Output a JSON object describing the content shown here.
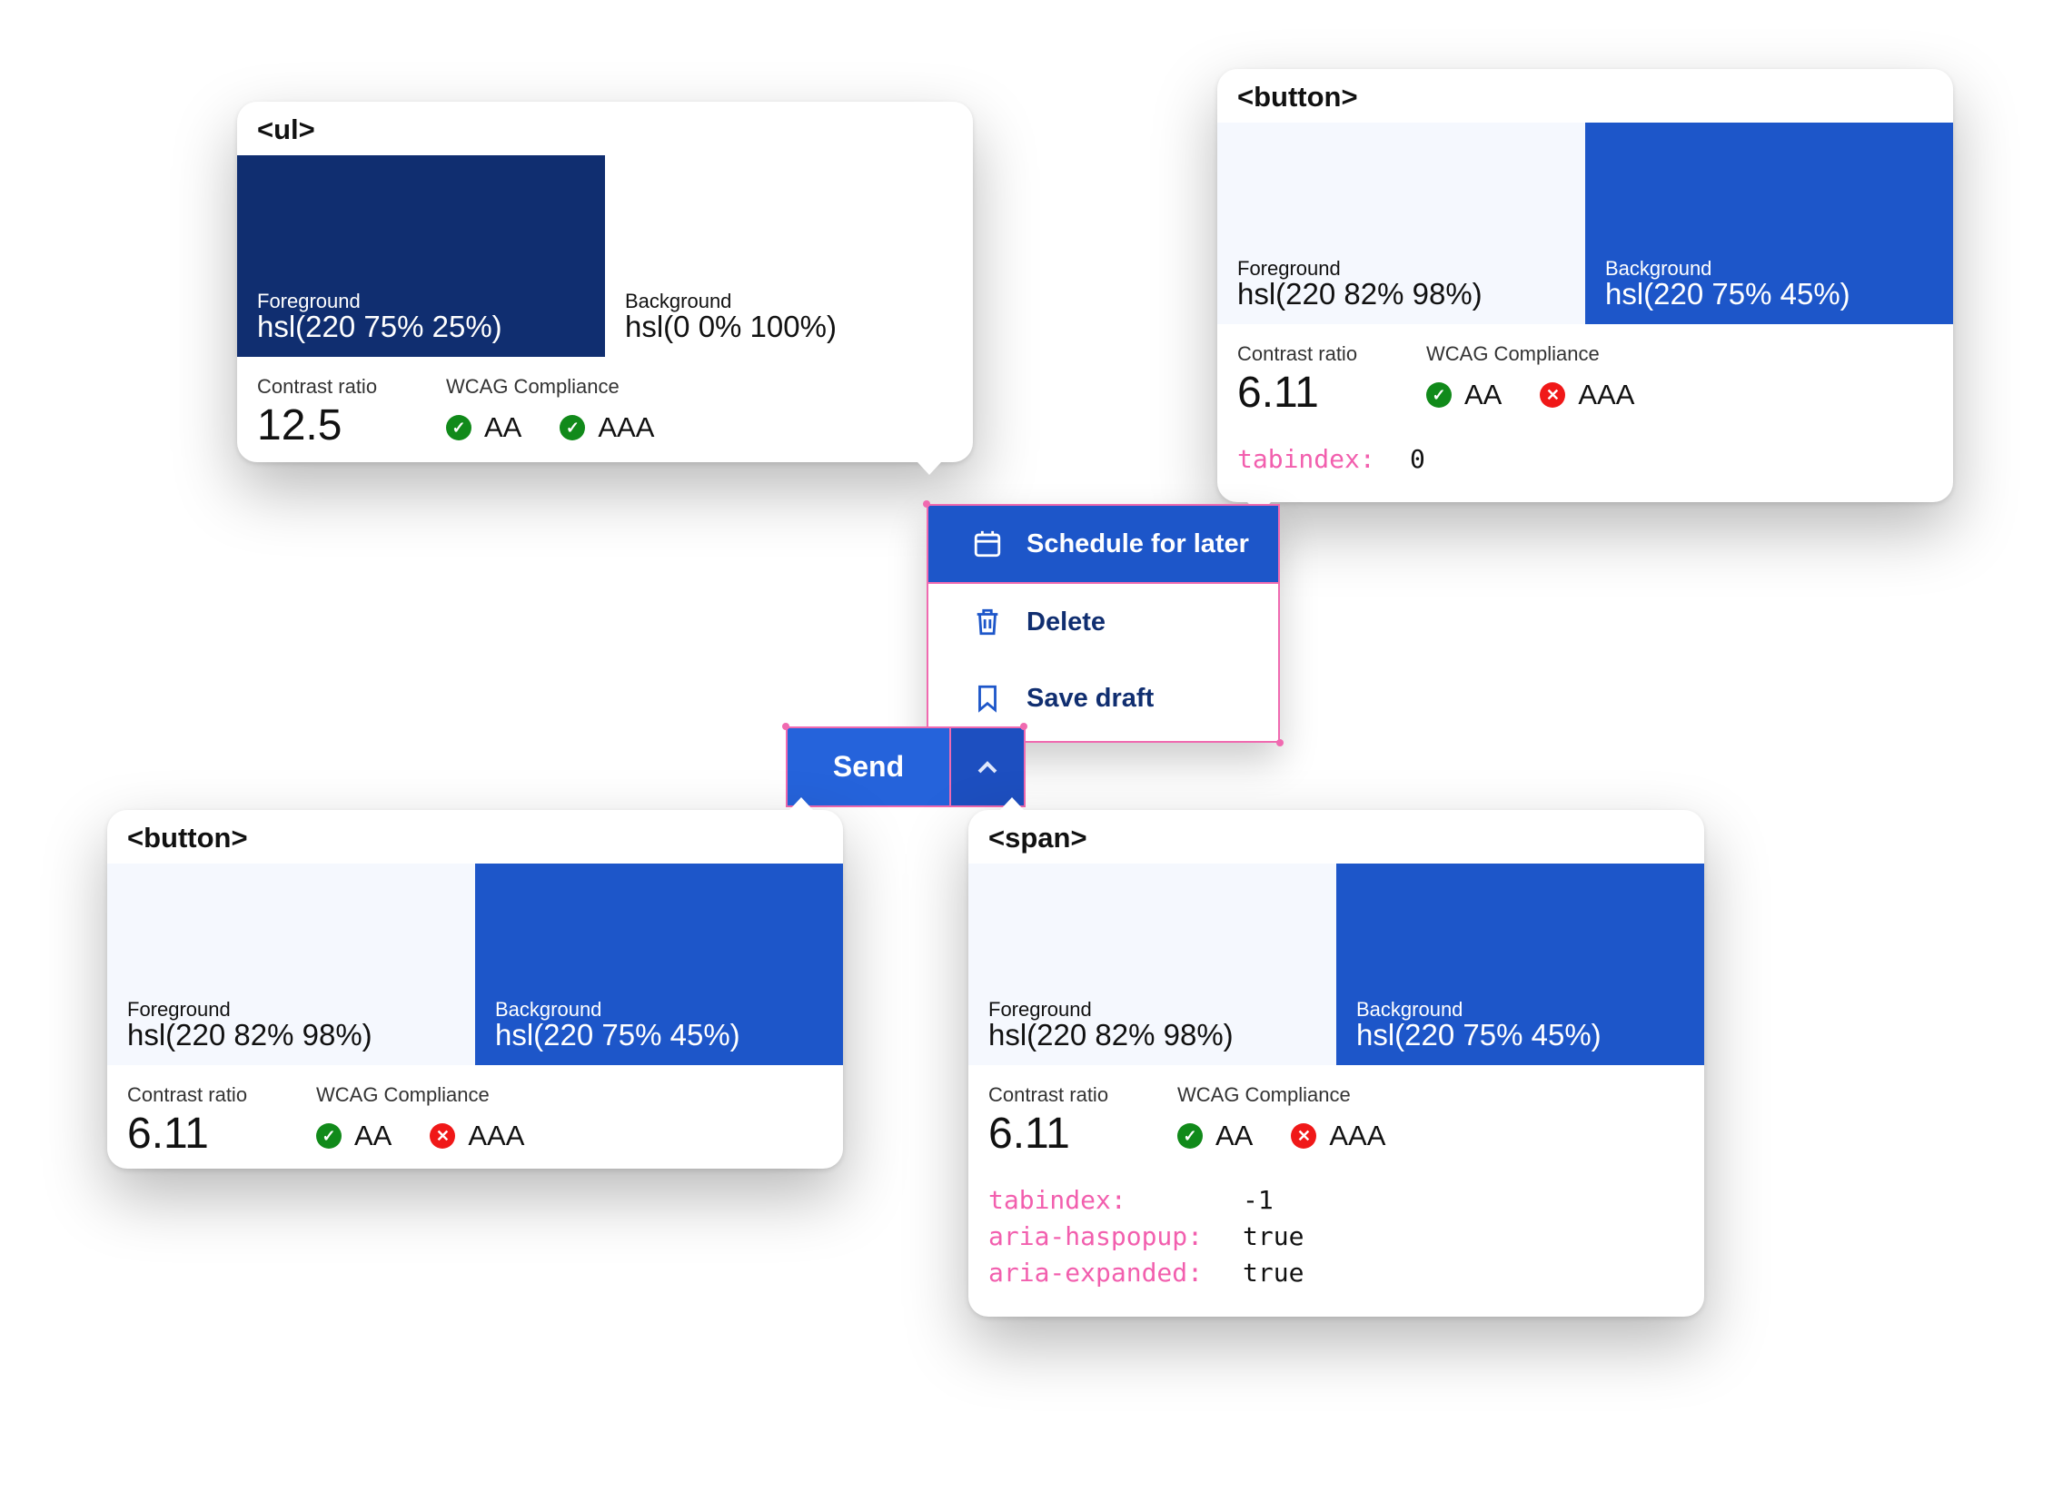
{
  "colors": {
    "accent": "#1d56c9",
    "dark": "#102e70",
    "pink": "#f06ab0",
    "pass": "#118a1a",
    "fail": "#f01818"
  },
  "cards": [
    {
      "tag": "<ul>",
      "fg_label": "Foreground",
      "fg_value": "hsl(220 75% 25%)",
      "bg_label": "Background",
      "bg_value": "hsl(0 0% 100%)",
      "ratio_label": "Contrast ratio",
      "ratio": "12.5",
      "wcag_label": "WCAG Compliance",
      "aa": "AA",
      "aa_pass": true,
      "aaa": "AAA",
      "aaa_pass": true
    },
    {
      "tag": "<button>",
      "fg_label": "Foreground",
      "fg_value": "hsl(220 82% 98%)",
      "bg_label": "Background",
      "bg_value": "hsl(220 75% 45%)",
      "ratio_label": "Contrast ratio",
      "ratio": "6.11",
      "wcag_label": "WCAG Compliance",
      "aa": "AA",
      "aa_pass": true,
      "aaa": "AAA",
      "aaa_pass": false,
      "attrs": [
        {
          "k": "tabindex:",
          "v": "0"
        }
      ]
    },
    {
      "tag": "<button>",
      "fg_label": "Foreground",
      "fg_value": "hsl(220 82% 98%)",
      "bg_label": "Background",
      "bg_value": "hsl(220 75% 45%)",
      "ratio_label": "Contrast ratio",
      "ratio": "6.11",
      "wcag_label": "WCAG Compliance",
      "aa": "AA",
      "aa_pass": true,
      "aaa": "AAA",
      "aaa_pass": false
    },
    {
      "tag": "<span>",
      "fg_label": "Foreground",
      "fg_value": "hsl(220 82% 98%)",
      "bg_label": "Background",
      "bg_value": "hsl(220 75% 45%)",
      "ratio_label": "Contrast ratio",
      "ratio": "6.11",
      "wcag_label": "WCAG Compliance",
      "aa": "AA",
      "aa_pass": true,
      "aaa": "AAA",
      "aaa_pass": false,
      "attrs": [
        {
          "k": "tabindex:",
          "v": "-1"
        },
        {
          "k": "aria-haspopup:",
          "v": "true"
        },
        {
          "k": "aria-expanded:",
          "v": "true"
        }
      ]
    }
  ],
  "menu": {
    "items": [
      {
        "label": "Schedule for later",
        "icon": "calendar-icon"
      },
      {
        "label": "Delete",
        "icon": "trash-icon"
      },
      {
        "label": "Save draft",
        "icon": "bookmark-icon"
      }
    ]
  },
  "send": {
    "label": "Send",
    "toggle_icon": "chevron-up-icon"
  }
}
